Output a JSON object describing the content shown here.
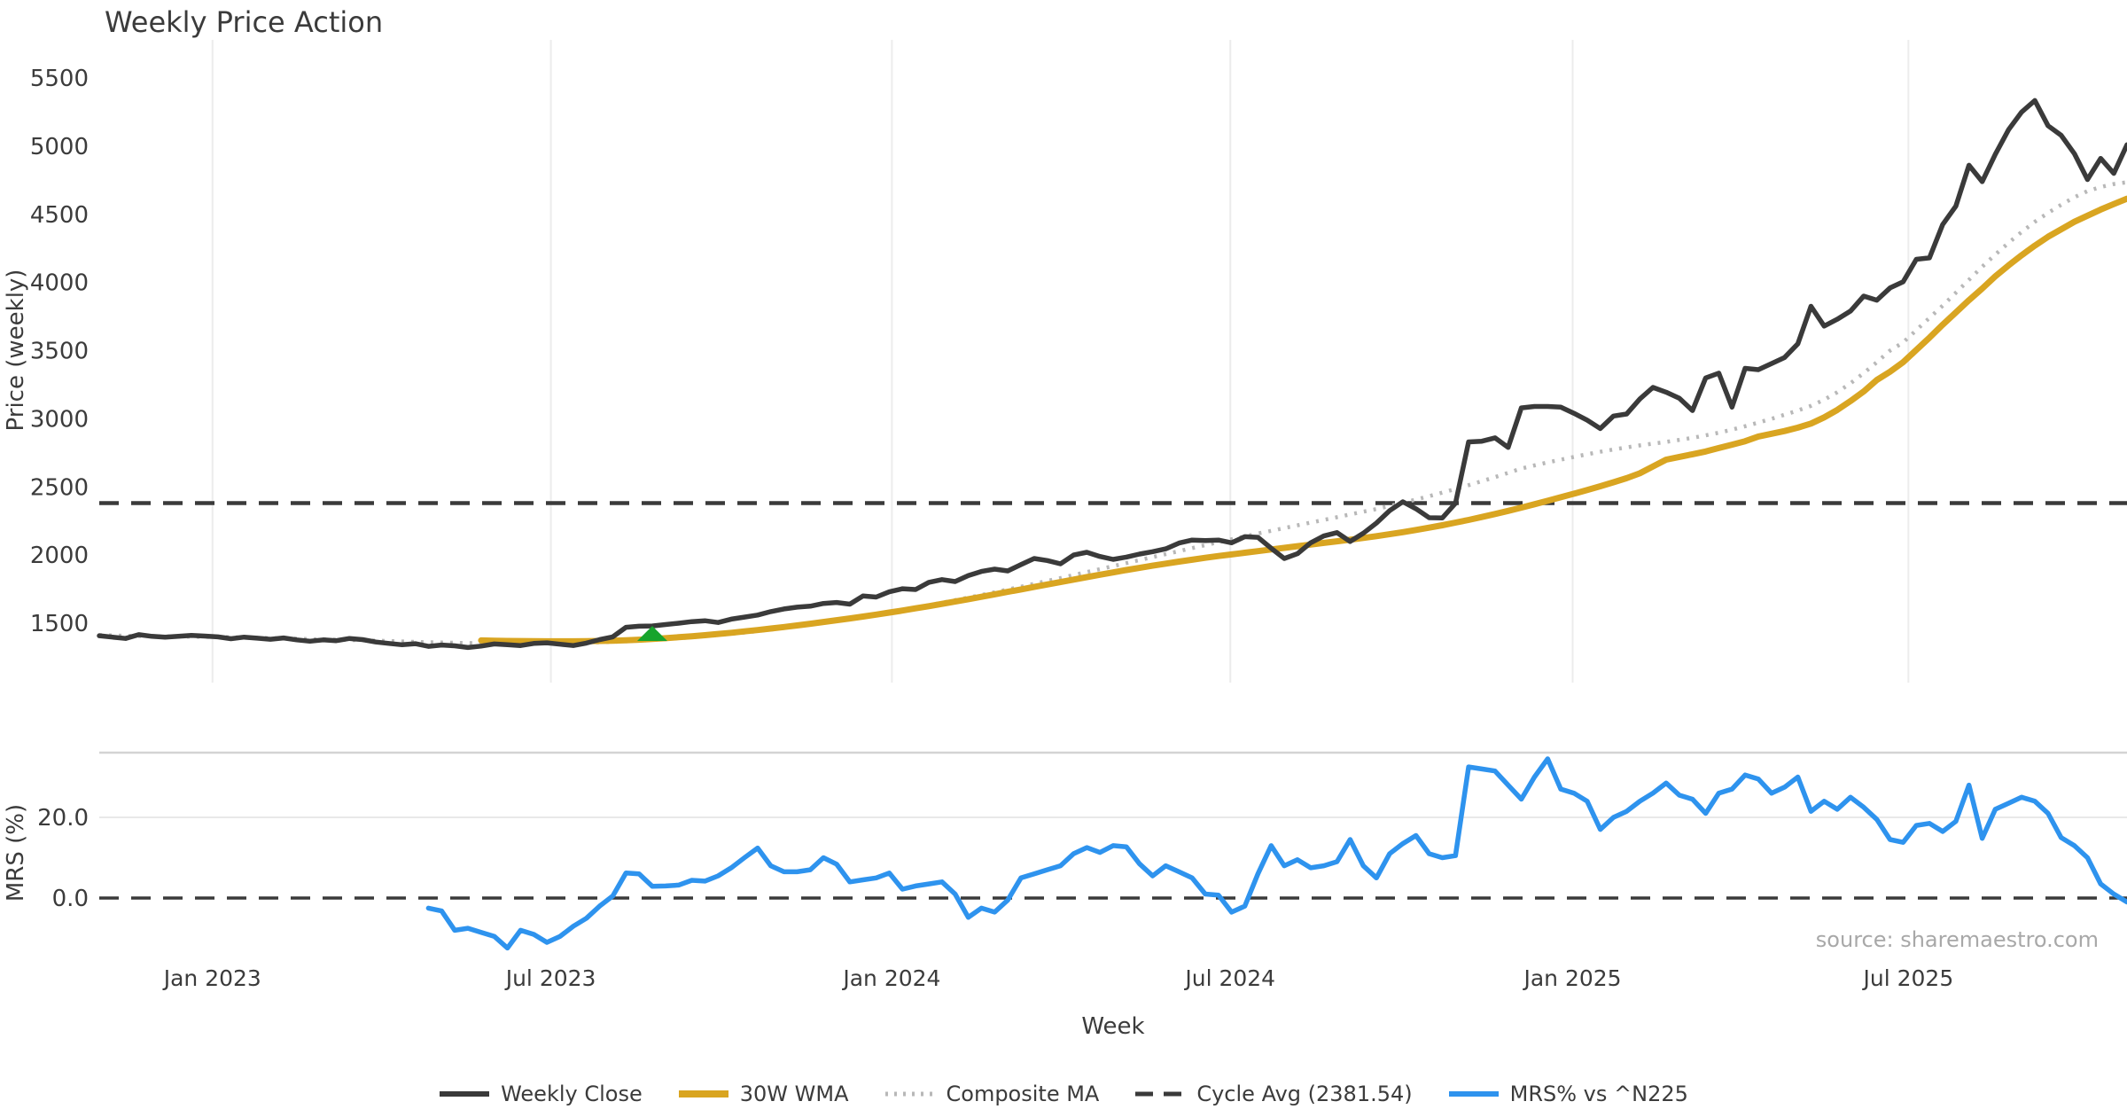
{
  "title": "Weekly Price Action",
  "x_axis_label": "Week",
  "price_axis_label": "Price (weekly)",
  "mrs_axis_label": "MRS (%)",
  "source": "source: sharemaestro.com",
  "colors": {
    "weekly_close": "#3a3a3a",
    "wma": "#d9a521",
    "composite": "#b8b8b8",
    "cycle_avg": "#3a3a3a",
    "mrs": "#2e93ee",
    "signal_green": "#17a42c",
    "gridline": "#ececec",
    "spine": "#d4d4d4",
    "text": "#3b3b3b",
    "source_text": "#a8a8a8"
  },
  "legend": [
    {
      "label": "Weekly Close",
      "style": "solid",
      "color": "#3a3a3a",
      "width": 5
    },
    {
      "label": "30W WMA",
      "style": "solid",
      "color": "#d9a521",
      "width": 7
    },
    {
      "label": "Composite MA",
      "style": "dotted",
      "color": "#b8b8b8",
      "width": 4
    },
    {
      "label": "Cycle Avg (2381.54)",
      "style": "dashed",
      "color": "#3a3a3a",
      "width": 4
    },
    {
      "label": "MRS% vs ^N225",
      "style": "solid",
      "color": "#2e93ee",
      "width": 5
    }
  ],
  "signal_marker": {
    "shape": "triangle-up",
    "color": "#17a42c",
    "week": 42,
    "price_apex": 1480,
    "price_base": 1370
  },
  "chart_data": {
    "type": "line",
    "title": "Weekly Price Action",
    "xlabel": "Week",
    "x_unit": "week_index",
    "n_weeks": 155,
    "x_ticks": [
      {
        "label": "Jan 2023",
        "week": 8.6
      },
      {
        "label": "Jul 2023",
        "week": 34.3
      },
      {
        "label": "Jan 2024",
        "week": 60.2
      },
      {
        "label": "Jul 2024",
        "week": 85.9
      },
      {
        "label": "Jan 2025",
        "week": 111.9
      },
      {
        "label": "Jul 2025",
        "week": 137.4
      }
    ],
    "grid": "vertical-only-top-panel",
    "legend_position": "bottom-center",
    "panels": [
      {
        "id": "price",
        "ylabel": "Price (weekly)",
        "ylim": [
          900,
          5560
        ],
        "yticks": [
          1500,
          2000,
          2500,
          3000,
          3500,
          4000,
          4500,
          5000,
          5500
        ],
        "cycle_avg": 2381.54,
        "series": [
          {
            "name": "Weekly Close",
            "style": "solid",
            "color": "#3a3a3a",
            "start_week": 0,
            "values": [
              1408,
              1398,
              1388,
              1416,
              1404,
              1398,
              1404,
              1410,
              1406,
              1400,
              1386,
              1398,
              1390,
              1382,
              1392,
              1378,
              1368,
              1378,
              1372,
              1388,
              1380,
              1362,
              1352,
              1342,
              1350,
              1330,
              1340,
              1334,
              1322,
              1332,
              1348,
              1342,
              1336,
              1352,
              1356,
              1346,
              1336,
              1354,
              1380,
              1400,
              1470,
              1478,
              1480,
              1490,
              1500,
              1512,
              1518,
              1505,
              1530,
              1545,
              1560,
              1585,
              1605,
              1618,
              1625,
              1645,
              1652,
              1640,
              1700,
              1692,
              1730,
              1753,
              1747,
              1800,
              1820,
              1806,
              1850,
              1880,
              1897,
              1884,
              1930,
              1975,
              1960,
              1936,
              2000,
              2020,
              1990,
              1968,
              1985,
              2007,
              2025,
              2046,
              2088,
              2110,
              2106,
              2110,
              2090,
              2135,
              2130,
              2050,
              1975,
              2010,
              2090,
              2140,
              2165,
              2100,
              2160,
              2235,
              2326,
              2391,
              2340,
              2274,
              2272,
              2380,
              2830,
              2835,
              2860,
              2790,
              3080,
              3090,
              3090,
              3085,
              3040,
              2990,
              2928,
              3020,
              3035,
              3145,
              3230,
              3195,
              3150,
              3060,
              3300,
              3335,
              3085,
              3370,
              3360,
              3405,
              3450,
              3550,
              3825,
              3680,
              3730,
              3790,
              3900,
              3870,
              3960,
              4005,
              4170,
              4180,
              4425,
              4560,
              4860,
              4740,
              4940,
              5120,
              5250,
              5335,
              5150,
              5080,
              4945,
              4755,
              4910,
              4800,
              5010
            ]
          },
          {
            "name": "30W WMA",
            "style": "solid",
            "color": "#d9a521",
            "start_week": 29,
            "values": [
              1374,
              1372,
              1370,
              1369,
              1368,
              1367,
              1367,
              1367,
              1368,
              1370,
              1372,
              1375,
              1379,
              1384,
              1390,
              1397,
              1404,
              1412,
              1421,
              1430,
              1440,
              1450,
              1461,
              1472,
              1484,
              1496,
              1509,
              1522,
              1535,
              1549,
              1563,
              1578,
              1593,
              1609,
              1625,
              1642,
              1659,
              1676,
              1694,
              1712,
              1730,
              1748,
              1766,
              1784,
              1802,
              1820,
              1838,
              1856,
              1873,
              1890,
              1906,
              1922,
              1937,
              1952,
              1966,
              1980,
              1993,
              2005,
              2017,
              2029,
              2041,
              2053,
              2065,
              2077,
              2089,
              2101,
              2113,
              2126,
              2139,
              2153,
              2168,
              2184,
              2201,
              2219,
              2238,
              2258,
              2279,
              2301,
              2324,
              2348,
              2373,
              2398,
              2424,
              2450,
              2477,
              2505,
              2534,
              2564,
              2600,
              2650,
              2700,
              2720,
              2740,
              2760,
              2785,
              2810,
              2835,
              2870,
              2890,
              2910,
              2935,
              2965,
              3010,
              3065,
              3130,
              3200,
              3285,
              3345,
              3415,
              3505,
              3595,
              3690,
              3780,
              3870,
              3955,
              4045,
              4125,
              4200,
              4270,
              4335,
              4390,
              4445,
              4490,
              4535,
              4575,
              4615
            ]
          },
          {
            "name": "Composite MA",
            "style": "dotted",
            "color": "#b8b8b8",
            "start_week": 0,
            "values": [
              1412,
              1410,
              1407,
              1406,
              1405,
              1403,
              1402,
              1401,
              1400,
              1399,
              1397,
              1395,
              1393,
              1391,
              1389,
              1386,
              1383,
              1381,
              1379,
              1377,
              1375,
              1372,
              1369,
              1366,
              1363,
              1360,
              1358,
              1356,
              1354,
              1353,
              1352,
              1352,
              1352,
              1353,
              1354,
              1355,
              1356,
              1358,
              1360,
              1363,
              1367,
              1372,
              1377,
              1383,
              1390,
              1397,
              1405,
              1413,
              1422,
              1432,
              1442,
              1453,
              1465,
              1477,
              1490,
              1504,
              1518,
              1533,
              1548,
              1564,
              1580,
              1597,
              1614,
              1632,
              1650,
              1669,
              1688,
              1707,
              1727,
              1747,
              1768,
              1789,
              1810,
              1831,
              1853,
              1875,
              1897,
              1919,
              1941,
              1963,
              1985,
              2007,
              2029,
              2051,
              2073,
              2095,
              2116,
              2137,
              2158,
              2178,
              2198,
              2218,
              2238,
              2258,
              2278,
              2298,
              2318,
              2338,
              2360,
              2383,
              2407,
              2432,
              2458,
              2485,
              2513,
              2542,
              2572,
              2603,
              2635,
              2658,
              2680,
              2700,
              2720,
              2740,
              2758,
              2775,
              2790,
              2805,
              2818,
              2830,
              2845,
              2860,
              2878,
              2898,
              2920,
              2945,
              2972,
              3000,
              3030,
              3060,
              3095,
              3140,
              3195,
              3260,
              3335,
              3415,
              3500,
              3560,
              3650,
              3740,
              3830,
              3925,
              4020,
              4115,
              4205,
              4290,
              4370,
              4445,
              4510,
              4570,
              4625,
              4670,
              4700,
              4722,
              4735
            ]
          },
          {
            "name": "Cycle Avg",
            "style": "dashed",
            "color": "#3a3a3a",
            "constant": 2381.54
          }
        ]
      },
      {
        "id": "mrs",
        "ylabel": "MRS (%)",
        "ylim": [
          -16,
          36.5
        ],
        "yticks": [
          0.0,
          20.0
        ],
        "ytick_labels": [
          "0.0",
          "20.0"
        ],
        "series": [
          {
            "name": "MRS% vs ^N225",
            "style": "solid",
            "color": "#2e93ee",
            "start_week": 25,
            "values": [
              -2.5,
              -3.2,
              -8,
              -7.5,
              -8.5,
              -9.5,
              -12.4,
              -8,
              -9,
              -11,
              -9.5,
              -7,
              -5,
              -2,
              0.5,
              6.2,
              6,
              2.9,
              3,
              3.2,
              4.4,
              4.2,
              5.5,
              7.5,
              10,
              12.4,
              8,
              6.5,
              6.5,
              7,
              10,
              8.4,
              4,
              4.5,
              5,
              6.2,
              2.2,
              3,
              3.5,
              4,
              1,
              -4.8,
              -2.5,
              -3.5,
              -0.5,
              5,
              6,
              7,
              8,
              11,
              12.5,
              11.3,
              13,
              12.7,
              8.5,
              5.5,
              8,
              6.5,
              5,
              1,
              0.7,
              -3.5,
              -2,
              6,
              13,
              8,
              9.5,
              7.5,
              8,
              9,
              14.5,
              8,
              5,
              11,
              13.5,
              15.5,
              11,
              10,
              10.5,
              32.5,
              32,
              31.5,
              28,
              24.5,
              30,
              34.5,
              27,
              26,
              24,
              17,
              20,
              21.5,
              24,
              26,
              28.5,
              25.5,
              24.5,
              21,
              26,
              27,
              30.5,
              29.5,
              26,
              27.5,
              30,
              21.5,
              24,
              22,
              25,
              22.5,
              19.5,
              14.5,
              13.8,
              18,
              18.5,
              16.5,
              19,
              28,
              14.8,
              22,
              23.5,
              25,
              24,
              21,
              15,
              13,
              10,
              3.5,
              1,
              -1
            ]
          },
          {
            "name": "zero-line",
            "style": "dashed",
            "color": "#3a3a3a",
            "constant": 0
          }
        ]
      }
    ]
  }
}
